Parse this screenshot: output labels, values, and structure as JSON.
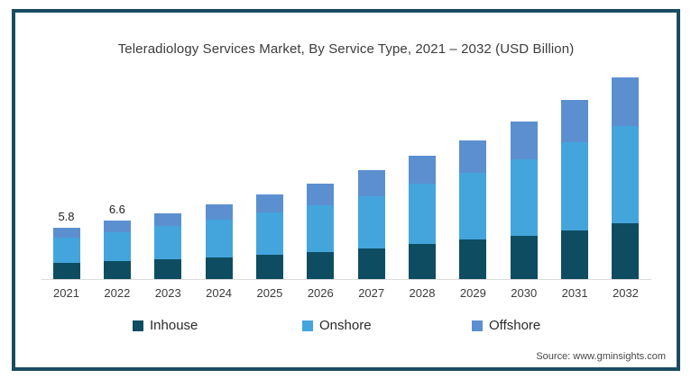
{
  "title": "Teleradiology Services Market, By Service Type, 2021 – 2032 (USD Billion)",
  "source": "Source: www.gminsights.com",
  "colors": {
    "frame_border": "#1a4c61",
    "inhouse": "#0e4d61",
    "onshore": "#44a5dd",
    "offshore": "#5c8fd0",
    "axis_line": "#dcdcdc"
  },
  "legend": [
    {
      "label": "Inhouse",
      "color": "#0e4d61"
    },
    {
      "label": "Onshore",
      "color": "#44a5dd"
    },
    {
      "label": "Offshore",
      "color": "#5c8fd0"
    }
  ],
  "chart_data": {
    "type": "bar",
    "stacked": true,
    "title": "Teleradiology Services Market, By Service Type, 2021 – 2032 (USD Billion)",
    "xlabel": "",
    "ylabel": "USD Billion",
    "ylim": [
      0,
      23
    ],
    "grid": false,
    "legend_position": "bottom",
    "categories": [
      "2021",
      "2022",
      "2023",
      "2024",
      "2025",
      "2026",
      "2027",
      "2028",
      "2029",
      "2030",
      "2031",
      "2032"
    ],
    "series": [
      {
        "name": "Inhouse",
        "color": "#0e4d61",
        "values": [
          1.8,
          2.0,
          2.2,
          2.4,
          2.7,
          3.0,
          3.4,
          3.9,
          4.4,
          4.9,
          5.5,
          6.3
        ]
      },
      {
        "name": "Onshore",
        "color": "#44a5dd",
        "values": [
          2.8,
          3.3,
          3.8,
          4.3,
          4.8,
          5.3,
          5.9,
          6.8,
          7.5,
          8.5,
          9.9,
          10.9
        ]
      },
      {
        "name": "Offshore",
        "color": "#5c8fd0",
        "values": [
          1.2,
          1.3,
          1.4,
          1.7,
          2.0,
          2.4,
          2.9,
          3.1,
          3.7,
          4.3,
          4.7,
          5.4
        ]
      }
    ],
    "totals": [
      5.8,
      6.6,
      7.4,
      8.4,
      9.5,
      10.7,
      12.2,
      13.8,
      15.6,
      17.7,
      20.1,
      22.6
    ],
    "data_labels": {
      "2021": "5.8",
      "2022": "6.6"
    }
  }
}
